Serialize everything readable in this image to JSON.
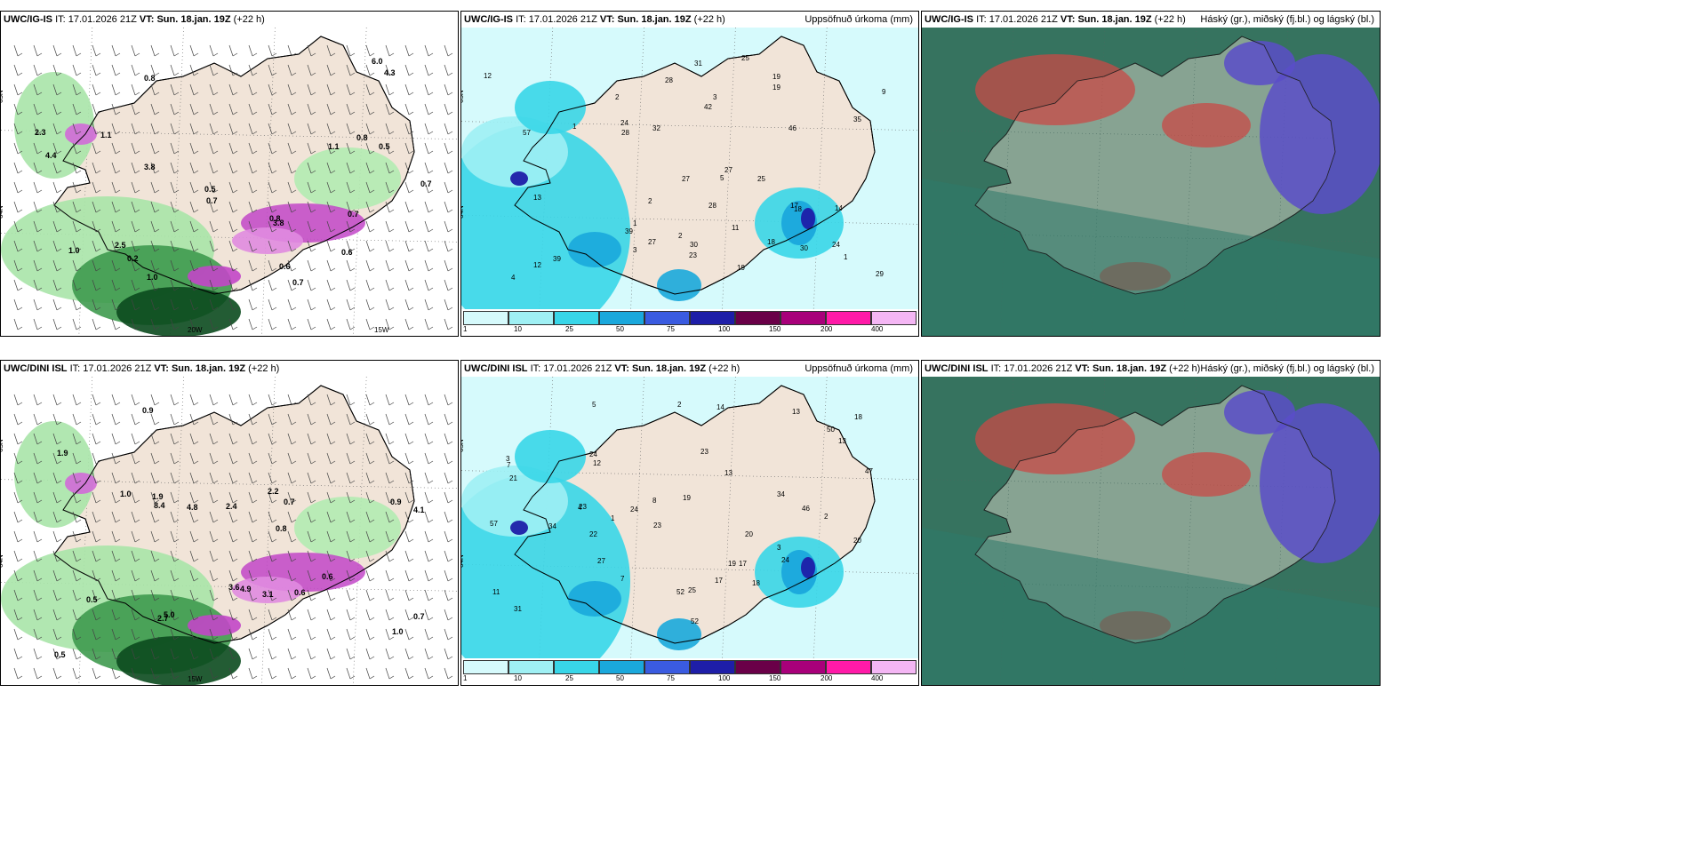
{
  "panels": [
    {
      "id": "p1",
      "header": {
        "model": "UWC/IG-IS",
        "it_label": "IT:",
        "it": "17.01.2026 21Z",
        "vt_label": "VT:",
        "vt": "Sun. 18.jan. 19Z",
        "lead": "(+22 h)",
        "right": ""
      },
      "grid_labels": [
        "65N",
        "64N",
        "20W",
        "15W"
      ]
    },
    {
      "id": "p2",
      "header": {
        "model": "UWC/IG-IS",
        "it_label": "IT:",
        "it": "17.01.2026 21Z",
        "vt_label": "VT:",
        "vt": "Sun. 18.jan. 19Z",
        "lead": "(+22 h)",
        "right": "Uppsöfnuð úrkoma (mm)"
      },
      "grid_labels": [
        "65N",
        "64N"
      ]
    },
    {
      "id": "p3",
      "header": {
        "model": "UWC/IG-IS",
        "it_label": "IT:",
        "it": "17.01.2026 21Z",
        "vt_label": "VT:",
        "vt": "Sun. 18.jan. 19Z",
        "lead": "(+22 h)",
        "right": "Háský (gr.), miðský (fj.bl.) og lágský (bl.)"
      },
      "grid_labels": []
    },
    {
      "id": "p4",
      "header": {
        "model": "UWC/DINI ISL",
        "it_label": "IT:",
        "it": "17.01.2026 21Z",
        "vt_label": "VT:",
        "vt": "Sun. 18.jan. 19Z",
        "lead": "(+22 h)",
        "right": ""
      },
      "grid_labels": [
        "65N",
        "64N",
        "15W"
      ]
    },
    {
      "id": "p5",
      "header": {
        "model": "UWC/DINI ISL",
        "it_label": "IT:",
        "it": "17.01.2026 21Z",
        "vt_label": "VT:",
        "vt": "Sun. 18.jan. 19Z",
        "lead": "(+22 h)",
        "right": "Uppsöfnuð úrkoma (mm)"
      },
      "grid_labels": [
        "65N",
        "64N"
      ]
    },
    {
      "id": "p6",
      "header": {
        "model": "UWC/DINI ISL",
        "it_label": "IT:",
        "it": "17.01.2026 21Z",
        "vt_label": "VT:",
        "vt": "Sun. 18.jan. 19Z",
        "lead": "(+22 h)",
        "right": "Háský (gr.), miðský (fj.bl.) og lágský (bl.)"
      },
      "grid_labels": []
    }
  ],
  "legend": {
    "ticks": [
      "1",
      "10",
      "25",
      "50",
      "75",
      "100",
      "150",
      "200",
      "400"
    ],
    "colors": [
      "#d6fafc",
      "#9ff0f4",
      "#38d6e8",
      "#1aa8dc",
      "#3a5be0",
      "#1e1ea8",
      "#6a0048",
      "#a8007a",
      "#ff1aa8",
      "#f4b6f4"
    ]
  },
  "precip_values_top": [
    "12",
    "14",
    "27",
    "28",
    "28",
    "25",
    "24",
    "19",
    "30",
    "39",
    "29",
    "28",
    "27",
    "31",
    "18",
    "24",
    "17",
    "13",
    "27",
    "9",
    "12",
    "39",
    "23",
    "25",
    "18",
    "19",
    "32",
    "42",
    "35",
    "11",
    "1",
    "2",
    "3",
    "4",
    "5",
    "19",
    "30",
    "46",
    "57",
    "2",
    "1",
    "1",
    "2",
    "3"
  ],
  "precip_values_bottom": [
    "14",
    "19",
    "18",
    "19",
    "24",
    "20",
    "25",
    "18",
    "24",
    "17",
    "23",
    "23",
    "27",
    "24",
    "23",
    "50",
    "46",
    "47",
    "13",
    "22",
    "13",
    "20",
    "31",
    "7",
    "21",
    "17",
    "11",
    "52",
    "57",
    "34",
    "8",
    "2",
    "3",
    "4",
    "5",
    "7",
    "12",
    "34",
    "52",
    "13",
    "2",
    "3",
    "1"
  ],
  "wind_values_top": [
    "0.7",
    "0.8",
    "2.5",
    "1.1",
    "0.8",
    "0.6",
    "0.7",
    "3.8",
    "0.7",
    "0.2",
    "1.0",
    "2.3",
    "0.5",
    "0.8",
    "1.1",
    "6.0",
    "4.4",
    "4.3",
    "0.7",
    "0.5",
    "0.6",
    "3.8",
    "1.0"
  ],
  "wind_values_bottom": [
    "0.5",
    "0.7",
    "0.9",
    "1.0",
    "0.6",
    "0.7",
    "0.8",
    "2.4",
    "4.8",
    "4.9",
    "2.2",
    "4.1",
    "8.4",
    "5.0",
    "3.1",
    "2.7",
    "1.9",
    "0.6",
    "0.9",
    "0.5",
    "3.6",
    "1.9",
    "1.0"
  ],
  "colors": {
    "land": "#f1e4d8",
    "sea_cloud": "#3e7a66",
    "high_cloud": "#c84a46",
    "mid_cloud": "#5a4ec8",
    "low_cloud": "#2f6e5a"
  }
}
